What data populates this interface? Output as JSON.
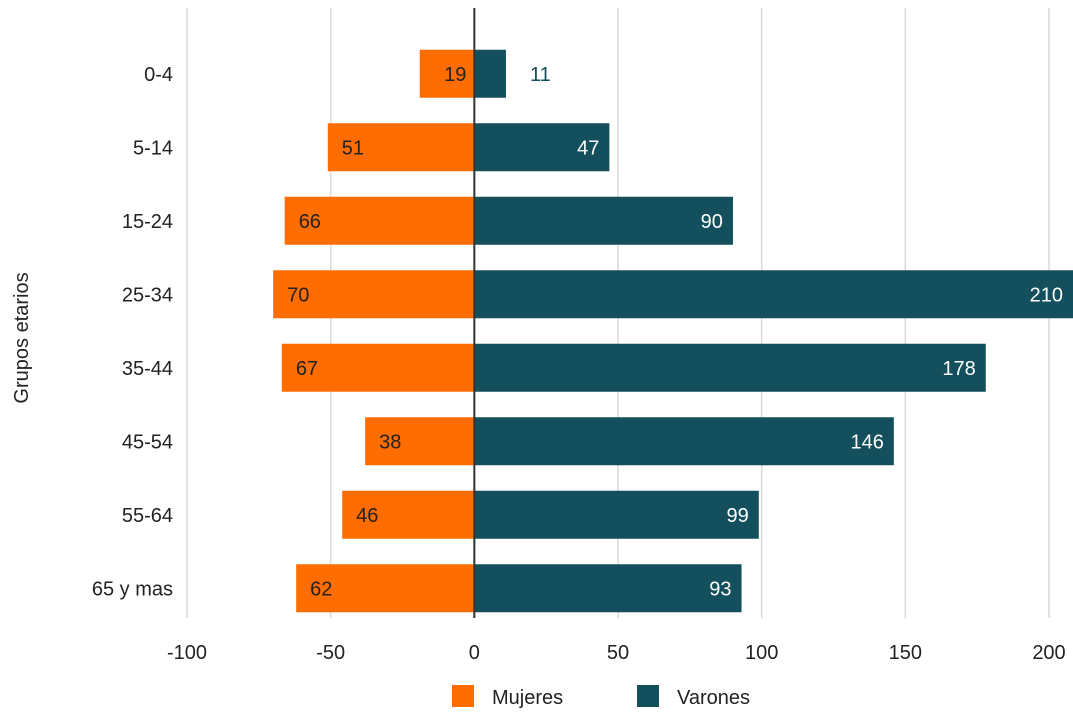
{
  "chart_data": {
    "type": "bar",
    "orientation": "horizontal",
    "diverging": true,
    "ylabel": "Grupos etarios",
    "xlabel": "",
    "xlim": [
      -100,
      200
    ],
    "xticks": [
      -100,
      -50,
      0,
      50,
      100,
      150,
      200
    ],
    "categories": [
      "0-4",
      "5-14",
      "15-24",
      "25-34",
      "35-44",
      "45-54",
      "55-64",
      "65 y mas"
    ],
    "series": [
      {
        "name": "Mujeres",
        "color": "#ff6d01",
        "values": [
          19,
          51,
          66,
          70,
          67,
          38,
          46,
          62
        ],
        "direction": "negative"
      },
      {
        "name": "Varones",
        "color": "#134f5c",
        "values": [
          11,
          47,
          90,
          210,
          178,
          146,
          99,
          93
        ],
        "direction": "positive"
      }
    ],
    "grid": true,
    "legend_position": "bottom"
  }
}
